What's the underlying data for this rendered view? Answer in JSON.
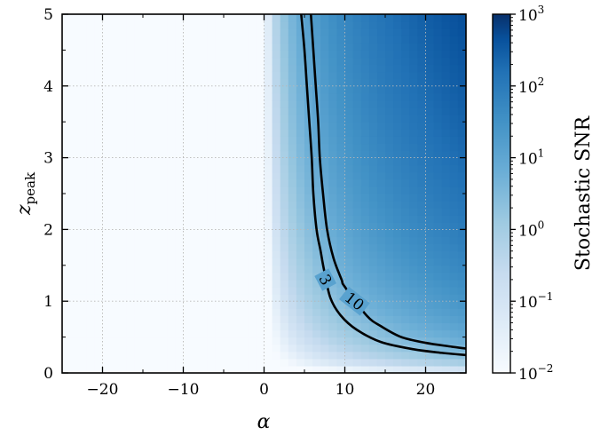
{
  "chart_data": {
    "type": "heatmap",
    "title": "",
    "xlabel": "α",
    "ylabel": {
      "base": "z",
      "subscript": "peak"
    },
    "xlim": [
      -25,
      25
    ],
    "ylim": [
      0,
      5
    ],
    "xticks": [
      -20,
      -10,
      0,
      10,
      20
    ],
    "xtick_labels": [
      "−20",
      "−10",
      "0",
      "10",
      "20"
    ],
    "yticks": [
      0,
      1,
      2,
      3,
      4,
      5
    ],
    "ytick_labels": [
      "0",
      "1",
      "2",
      "3",
      "4",
      "5"
    ],
    "grid": true,
    "grid_cells": {
      "nx": 50,
      "ny": 50
    },
    "colormap": {
      "name": "Blues",
      "low": "#f7fbff",
      "high": "#08306b"
    },
    "colorbar": {
      "label": "Stochastic SNR",
      "scale": "log",
      "range": [
        0.01,
        1000
      ],
      "ticks": [
        {
          "value": 0.01,
          "base": "10",
          "exp": "−2"
        },
        {
          "value": 0.1,
          "base": "10",
          "exp": "−1"
        },
        {
          "value": 1,
          "base": "10",
          "exp": "0"
        },
        {
          "value": 10,
          "base": "10",
          "exp": "1"
        },
        {
          "value": 100,
          "base": "10",
          "exp": "2"
        },
        {
          "value": 1000,
          "base": "10",
          "exp": "3"
        }
      ]
    },
    "contours": [
      {
        "level": 3,
        "label": "3",
        "label_at": [
          7.6,
          1.3
        ],
        "points": [
          [
            4.6,
            5.0
          ],
          [
            5.0,
            4.5
          ],
          [
            5.3,
            4.0
          ],
          [
            5.6,
            3.5
          ],
          [
            5.9,
            3.0
          ],
          [
            6.1,
            2.5
          ],
          [
            6.5,
            2.0
          ],
          [
            7.0,
            1.7
          ],
          [
            7.4,
            1.45
          ],
          [
            8.2,
            1.05
          ],
          [
            9.5,
            0.8
          ],
          [
            11.5,
            0.6
          ],
          [
            14.5,
            0.43
          ],
          [
            18.5,
            0.33
          ],
          [
            22.0,
            0.28
          ],
          [
            25.0,
            0.25
          ]
        ]
      },
      {
        "level": 10,
        "label": "10",
        "label_at": [
          11.2,
          1.0
        ],
        "points": [
          [
            5.8,
            5.0
          ],
          [
            6.1,
            4.5
          ],
          [
            6.4,
            4.0
          ],
          [
            6.7,
            3.5
          ],
          [
            6.9,
            3.0
          ],
          [
            7.3,
            2.5
          ],
          [
            7.8,
            2.0
          ],
          [
            8.6,
            1.6
          ],
          [
            9.6,
            1.3
          ],
          [
            10.0,
            1.2
          ],
          [
            12.7,
            0.8
          ],
          [
            14.5,
            0.65
          ],
          [
            17.0,
            0.5
          ],
          [
            20.0,
            0.42
          ],
          [
            23.0,
            0.37
          ],
          [
            25.0,
            0.34
          ]
        ]
      }
    ]
  }
}
